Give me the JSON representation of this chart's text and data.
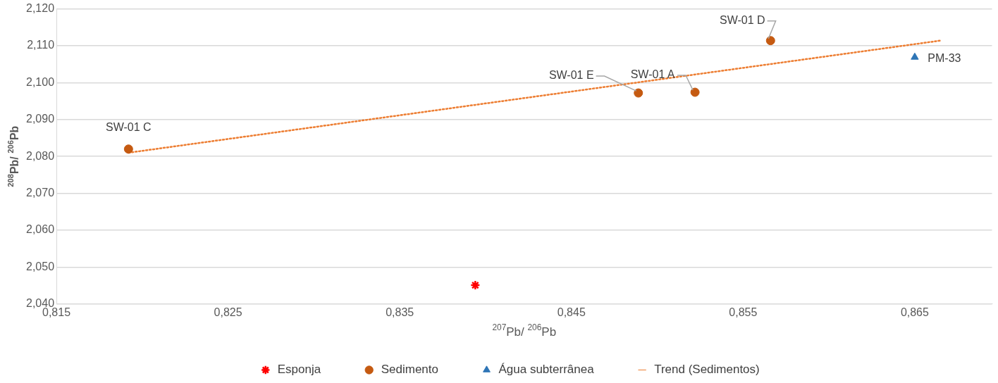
{
  "chart_data": {
    "type": "scatter",
    "xlabel": "$^{207}$Pb/ $^{206}$Pb",
    "ylabel": "$^{208}$Pb/ $^{206}$Pb",
    "xlim": [
      0.815,
      0.8695
    ],
    "ylim": [
      2.04,
      2.12
    ],
    "xticks": [
      {
        "value": 0.815,
        "label": "0,815"
      },
      {
        "value": 0.825,
        "label": "0,825"
      },
      {
        "value": 0.835,
        "label": "0,835"
      },
      {
        "value": 0.845,
        "label": "0,845"
      },
      {
        "value": 0.855,
        "label": "0,855"
      },
      {
        "value": 0.865,
        "label": "0,865"
      }
    ],
    "yticks": [
      {
        "value": 2.04,
        "label": "2,040"
      },
      {
        "value": 2.05,
        "label": "2,050"
      },
      {
        "value": 2.06,
        "label": "2,060"
      },
      {
        "value": 2.07,
        "label": "2,070"
      },
      {
        "value": 2.08,
        "label": "2,080"
      },
      {
        "value": 2.09,
        "label": "2,090"
      },
      {
        "value": 2.1,
        "label": "2,100"
      },
      {
        "value": 2.11,
        "label": "2,110"
      },
      {
        "value": 2.12,
        "label": "2,120"
      }
    ],
    "grid": "y",
    "legend": "bottom",
    "series": [
      {
        "name": "Esponja",
        "marker": "cross",
        "color": "#ff0000",
        "x": [
          0.8394
        ],
        "values": [
          2.0451
        ]
      },
      {
        "name": "Sedimento",
        "marker": "circle",
        "color": "#c55a11",
        "x": [
          0.8192,
          0.8489,
          0.8522,
          0.8566
        ],
        "values": [
          2.082,
          2.0972,
          2.0974,
          2.1114
        ]
      },
      {
        "name": "Água subterrânea",
        "marker": "triangle",
        "color": "#2e75b6",
        "x": [
          0.865
        ],
        "values": [
          2.1069
        ]
      },
      {
        "name": "Trend (Sedimentos)",
        "type": "line",
        "marker": "none",
        "line_style": "dotted",
        "color": "#ed7d31",
        "x": [
          0.8192,
          0.8665
        ],
        "values": [
          2.081,
          2.1114
        ]
      }
    ],
    "annotations": [
      {
        "text": "SW-01 C",
        "x": 0.8192,
        "y": 2.082
      },
      {
        "text": "SW-01 E",
        "x": 0.8489,
        "y": 2.0972
      },
      {
        "text": "SW-01 A",
        "x": 0.8522,
        "y": 2.0974
      },
      {
        "text": "SW-01 D",
        "x": 0.8566,
        "y": 2.1114
      },
      {
        "text": "PM-33",
        "x": 0.865,
        "y": 2.1069
      }
    ]
  }
}
